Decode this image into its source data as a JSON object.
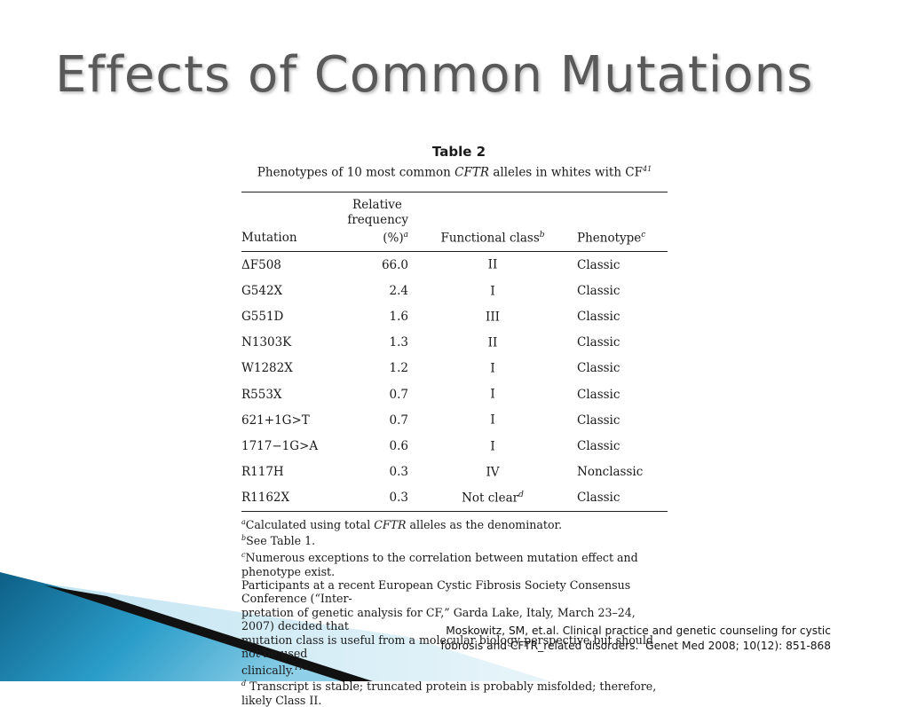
{
  "slide": {
    "title": "Effects of Common Mutations"
  },
  "table": {
    "label": "Table 2",
    "caption_pre": "Phenotypes of 10 most common ",
    "caption_italic": "CFTR",
    "caption_post": " alleles in whites with CF",
    "caption_ref": "41",
    "headers": {
      "mutation": "Mutation",
      "frequency_line1": "Relative",
      "frequency_line2": "frequency (%)",
      "frequency_mark": "a",
      "class": "Functional class",
      "class_mark": "b",
      "phenotype": "Phenotype",
      "phenotype_mark": "c"
    },
    "rows": [
      {
        "mutation": "ΔF508",
        "frequency": "66.0",
        "class": "II",
        "class_mark": "",
        "phenotype": "Classic"
      },
      {
        "mutation": "G542X",
        "frequency": "2.4",
        "class": "I",
        "class_mark": "",
        "phenotype": "Classic"
      },
      {
        "mutation": "G551D",
        "frequency": "1.6",
        "class": "III",
        "class_mark": "",
        "phenotype": "Classic"
      },
      {
        "mutation": "N1303K",
        "frequency": "1.3",
        "class": "II",
        "class_mark": "",
        "phenotype": "Classic"
      },
      {
        "mutation": "W1282X",
        "frequency": "1.2",
        "class": "I",
        "class_mark": "",
        "phenotype": "Classic"
      },
      {
        "mutation": "R553X",
        "frequency": "0.7",
        "class": "I",
        "class_mark": "",
        "phenotype": "Classic"
      },
      {
        "mutation": "621+1G>T",
        "frequency": "0.7",
        "class": "I",
        "class_mark": "",
        "phenotype": "Classic"
      },
      {
        "mutation": "1717−1G>A",
        "frequency": "0.6",
        "class": "I",
        "class_mark": "",
        "phenotype": "Classic"
      },
      {
        "mutation": "R117H",
        "frequency": "0.3",
        "class": "IV",
        "class_mark": "",
        "phenotype": "Nonclassic"
      },
      {
        "mutation": "R1162X",
        "frequency": "0.3",
        "class": "Not clear",
        "class_mark": "d",
        "phenotype": "Classic"
      }
    ],
    "footnotes": {
      "a_mark": "a",
      "a_pre": "Calculated using total ",
      "a_italic": "CFTR",
      "a_post": " alleles as the denominator.",
      "b_mark": "b",
      "b_text": "See Table 1.",
      "c_mark": "c",
      "c_line1": "Numerous exceptions to the correlation between mutation effect and phenotype exist.",
      "c_line2": "Participants at a recent European Cystic Fibrosis Society Consensus Conference (“Inter-",
      "c_line3": "pretation of genetic analysis for CF,” Garda Lake, Italy, March 23–24, 2007) decided that",
      "c_line4": "mutation class is useful from a molecular biology perspective but should not be used",
      "c_line5": "clinically.",
      "c_ref": "113",
      "d_mark": "d",
      "d_text": " Transcript is stable; truncated protein is probably misfolded; therefore, likely Class II."
    }
  },
  "citation": {
    "line1": "Moskowitz, SM, et.al. Clinical practice and genetic counseling for cystic",
    "line2": "fobrosis and CFTR_related disorders.  Genet Med 2008; 10(12): 851-868"
  },
  "colors": {
    "title": "#595959",
    "accent_blue": "#1f8fbf",
    "accent_dark": "#111111"
  }
}
